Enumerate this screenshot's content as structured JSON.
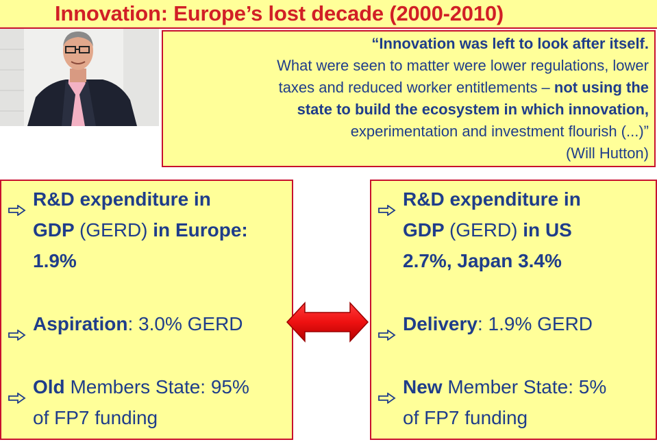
{
  "title": "Innovation: Europe’s lost decade (2000-2010)",
  "quote": {
    "lines": [
      [
        {
          "t": "“Innovation was left to look after itself.",
          "b": true
        }
      ],
      [
        {
          "t": "What were seen to matter were lower regulations, lower",
          "b": false
        }
      ],
      [
        {
          "t": "taxes and reduced worker entitlements – ",
          "b": false
        },
        {
          "t": "not using the",
          "b": true
        }
      ],
      [
        {
          "t": "state to build the ecosystem in which innovation,",
          "b": true
        }
      ],
      [
        {
          "t": "experimentation and investment flourish (...)”",
          "b": false
        }
      ],
      [
        {
          "t": "(Will Hutton)",
          "b": false
        }
      ]
    ]
  },
  "left_panel": {
    "items": [
      {
        "lines": [
          [
            {
              "t": "R&D expenditure in",
              "b": true
            }
          ],
          [
            {
              "t": "GDP ",
              "b": true
            },
            {
              "t": "(GERD)",
              "b": false
            },
            {
              "t": " in Europe:",
              "b": true
            }
          ],
          [
            {
              "t": "1.9%",
              "b": true
            }
          ]
        ]
      },
      {
        "lines": [
          [
            {
              "t": "Aspiration",
              "b": true
            },
            {
              "t": ": 3.0% GERD",
              "b": false
            }
          ]
        ]
      },
      {
        "lines": [
          [
            {
              "t": "Old",
              "b": true
            },
            {
              "t": " Members State: 95%",
              "b": false
            }
          ],
          [
            {
              "t": "of FP7 funding",
              "b": false
            }
          ]
        ]
      }
    ]
  },
  "right_panel": {
    "items": [
      {
        "lines": [
          [
            {
              "t": "R&D expenditure in",
              "b": true
            }
          ],
          [
            {
              "t": "GDP ",
              "b": true
            },
            {
              "t": "(GERD)",
              "b": false
            },
            {
              "t": " in US",
              "b": true
            }
          ],
          [
            {
              "t": "2.7%, Japan 3.4%",
              "b": true
            }
          ]
        ]
      },
      {
        "lines": [
          [
            {
              "t": "Delivery",
              "b": true
            },
            {
              "t": ": 1.9% GERD",
              "b": false
            }
          ]
        ]
      },
      {
        "lines": [
          [
            {
              "t": "New",
              "b": true
            },
            {
              "t": " Member State: 5%",
              "b": false
            }
          ],
          [
            {
              "t": "of FP7 funding",
              "b": false
            }
          ]
        ]
      }
    ]
  },
  "colors": {
    "title_red": "#d11f26",
    "text_blue": "#1f3d8a",
    "panel_yellow": "#ffff99",
    "border_red": "#c8102e",
    "arrow_red": "#ee1111"
  },
  "icons": {
    "bullet": "hollow-right-arrow-icon",
    "connector": "double-headed-arrow-icon"
  }
}
